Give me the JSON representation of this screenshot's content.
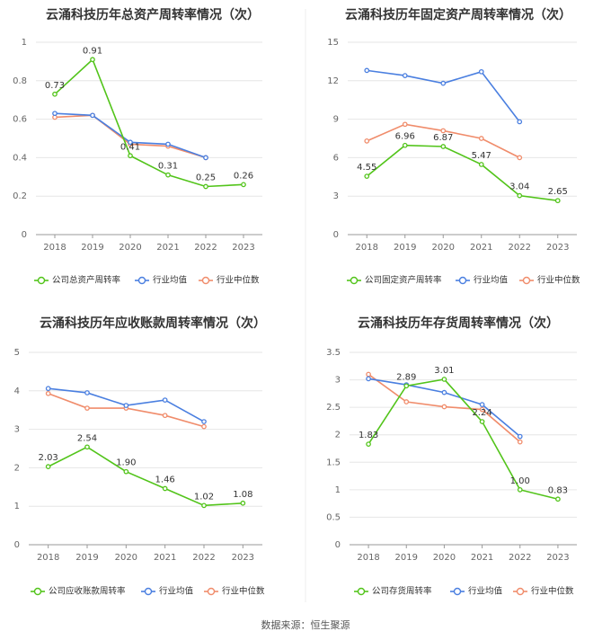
{
  "footer": {
    "source": "数据来源：恒生聚源"
  },
  "colors": {
    "company": "#52c41a",
    "industry_avg": "#4a7fe0",
    "industry_median": "#f08c6b"
  },
  "chart_data": [
    {
      "type": "line",
      "title": "云涌科技历年总资产周转率情况（次）",
      "x": [
        "2018",
        "2019",
        "2020",
        "2021",
        "2022",
        "2023"
      ],
      "ylim": [
        0,
        1
      ],
      "yticks": [
        "0",
        "0.2",
        "0.4",
        "0.6",
        "0.8",
        "1"
      ],
      "series": [
        {
          "name": "公司总资产周转率",
          "values": [
            0.73,
            0.91,
            0.41,
            0.31,
            0.25,
            0.26
          ],
          "labels": [
            "0.73",
            "0.91",
            "0.41",
            "0.31",
            "0.25",
            "0.26"
          ]
        },
        {
          "name": "行业均值",
          "values": [
            0.63,
            0.62,
            0.48,
            0.47,
            0.4,
            null
          ]
        },
        {
          "name": "行业中位数",
          "values": [
            0.61,
            0.62,
            0.47,
            0.46,
            0.4,
            null
          ]
        }
      ],
      "legend": "bottom",
      "grid": true
    },
    {
      "type": "line",
      "title": "云涌科技历年固定资产周转率情况（次）",
      "x": [
        "2018",
        "2019",
        "2020",
        "2021",
        "2022",
        "2023"
      ],
      "ylim": [
        0,
        15
      ],
      "yticks": [
        "0",
        "3",
        "6",
        "9",
        "12",
        "15"
      ],
      "series": [
        {
          "name": "公司固定资产周转率",
          "values": [
            4.55,
            6.96,
            6.87,
            5.47,
            3.04,
            2.65
          ],
          "labels": [
            "4.55",
            "6.96",
            "6.87",
            "5.47",
            "3.04",
            "2.65"
          ]
        },
        {
          "name": "行业均值",
          "values": [
            12.8,
            12.4,
            11.8,
            12.7,
            8.8,
            null
          ]
        },
        {
          "name": "行业中位数",
          "values": [
            7.3,
            8.6,
            8.1,
            7.5,
            6.0,
            null
          ]
        }
      ],
      "legend": "bottom",
      "grid": true
    },
    {
      "type": "line",
      "title": "云涌科技历年应收账款周转率情况（次）",
      "x": [
        "2018",
        "2019",
        "2020",
        "2021",
        "2022",
        "2023"
      ],
      "ylim": [
        0,
        5
      ],
      "yticks": [
        "0",
        "1",
        "2",
        "3",
        "4",
        "5"
      ],
      "series": [
        {
          "name": "公司应收账款周转率",
          "values": [
            2.03,
            2.54,
            1.9,
            1.46,
            1.02,
            1.08
          ],
          "labels": [
            "2.03",
            "2.54",
            "1.90",
            "1.46",
            "1.02",
            "1.08"
          ]
        },
        {
          "name": "行业均值",
          "values": [
            4.06,
            3.95,
            3.62,
            3.76,
            3.2,
            null
          ]
        },
        {
          "name": "行业中位数",
          "values": [
            3.93,
            3.55,
            3.55,
            3.36,
            3.07,
            null
          ]
        }
      ],
      "legend": "bottom",
      "grid": true
    },
    {
      "type": "line",
      "title": "云涌科技历年存货周转率情况（次）",
      "x": [
        "2018",
        "2019",
        "2020",
        "2021",
        "2022",
        "2023"
      ],
      "ylim": [
        0,
        3.5
      ],
      "yticks": [
        "0",
        "0.5",
        "1",
        "1.5",
        "2",
        "2.5",
        "3",
        "3.5"
      ],
      "series": [
        {
          "name": "公司存货周转率",
          "values": [
            1.83,
            2.89,
            3.01,
            2.24,
            1.0,
            0.83
          ],
          "labels": [
            "1.83",
            "2.89",
            "3.01",
            "2.24",
            "1.00",
            "0.83"
          ]
        },
        {
          "name": "行业均值",
          "values": [
            3.02,
            2.91,
            2.77,
            2.55,
            1.97,
            null
          ]
        },
        {
          "name": "行业中位数",
          "values": [
            3.1,
            2.6,
            2.51,
            2.46,
            1.87,
            null
          ]
        }
      ],
      "legend": "bottom",
      "grid": true
    }
  ]
}
